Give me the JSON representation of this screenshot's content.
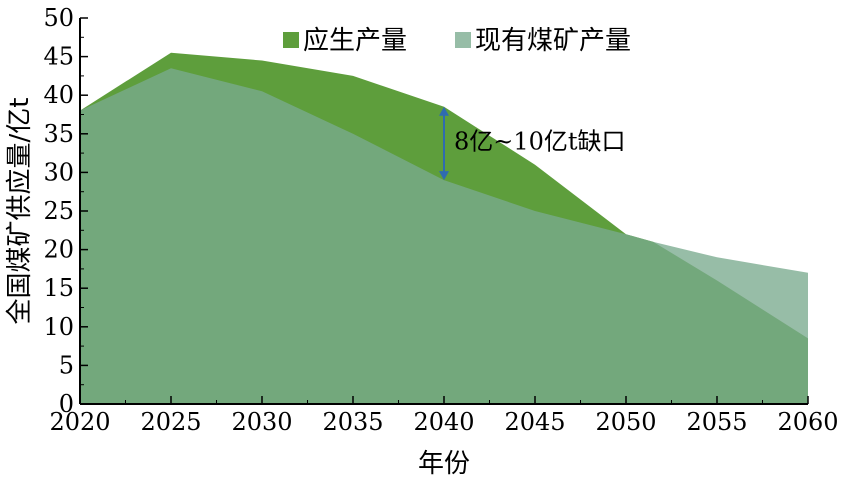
{
  "chart_data": {
    "type": "area",
    "title": "",
    "xlabel": "年份",
    "ylabel": "全国煤矿供应量/亿t",
    "x": [
      2020,
      2025,
      2030,
      2035,
      2040,
      2045,
      2050,
      2055,
      2060
    ],
    "xlim": [
      2020,
      2060
    ],
    "ylim": [
      0,
      50
    ],
    "xticks": [
      "2020",
      "2025",
      "2030",
      "2035",
      "2040",
      "2045",
      "2050",
      "2055",
      "2060"
    ],
    "yticks": [
      "0",
      "5",
      "10",
      "15",
      "20",
      "25",
      "30",
      "35",
      "40",
      "45",
      "50"
    ],
    "grid": false,
    "legend_position": "top-right",
    "series": [
      {
        "name": "应生产量",
        "color": "#5e9e3c",
        "x": [
          2020,
          2025,
          2030,
          2035,
          2040,
          2045,
          2050,
          2051.5,
          2055,
          2060
        ],
        "values": [
          38,
          45.5,
          44.5,
          42.5,
          38.5,
          31,
          22,
          21,
          16,
          8.5
        ]
      },
      {
        "name": "现有煤矿产量",
        "color": "#7aaa8e",
        "x": [
          2020,
          2025,
          2030,
          2035,
          2040,
          2045,
          2050,
          2051.5,
          2055,
          2060
        ],
        "values": [
          38,
          43.5,
          40.5,
          35,
          29,
          25,
          22,
          21,
          19,
          17
        ]
      }
    ],
    "annotations": [
      {
        "text": "8亿~10亿t缺口",
        "x": 2040,
        "y_from": 29,
        "y_to": 38.5
      }
    ]
  }
}
